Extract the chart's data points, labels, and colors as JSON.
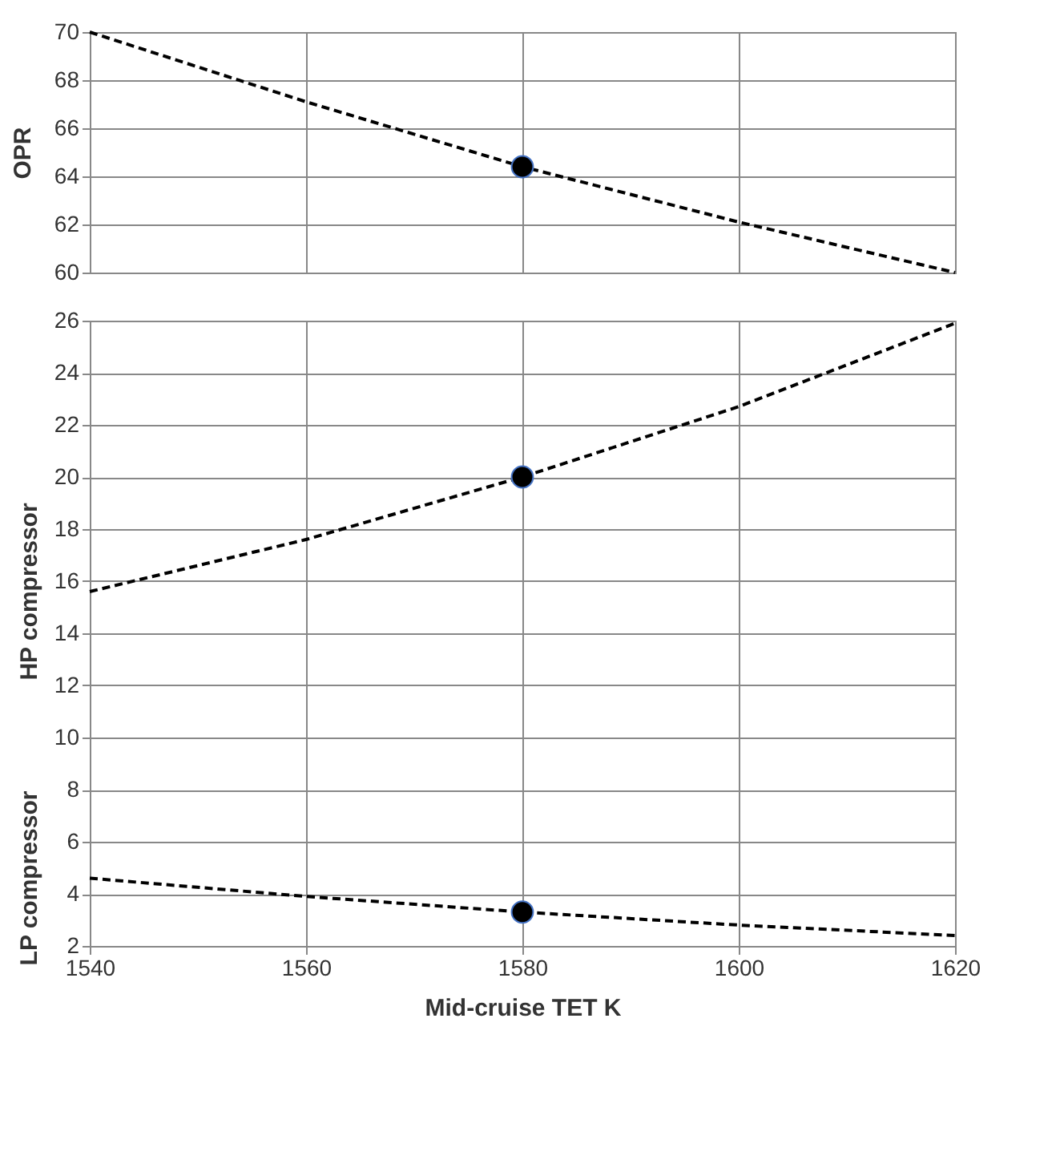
{
  "chart_data": [
    {
      "type": "line",
      "ylabel": "OPR",
      "xlim": [
        1540,
        1620
      ],
      "xticks": [
        1540,
        1560,
        1580,
        1600,
        1620
      ],
      "ylim": [
        60,
        70
      ],
      "yticks": [
        60,
        62,
        64,
        66,
        68,
        70
      ],
      "grid": true,
      "tick_labels": "y",
      "series": [
        {
          "color": "#000000",
          "line_style": "dashed",
          "x": [
            1540,
            1560,
            1580,
            1600,
            1620
          ],
          "values": [
            70,
            67.1,
            64.4,
            62.1,
            60
          ]
        },
        {
          "type": "scatter",
          "color": "#000000",
          "marker": "circle",
          "x": [
            1580
          ],
          "values": [
            64.4
          ]
        }
      ]
    },
    {
      "type": "line",
      "xlabel": "Mid-cruise TET K",
      "xlim": [
        1540,
        1620
      ],
      "xticks": [
        1540,
        1560,
        1580,
        1600,
        1620
      ],
      "ylim": [
        2,
        26
      ],
      "yticks": [
        2,
        4,
        6,
        8,
        10,
        12,
        14,
        16,
        18,
        20,
        22,
        24,
        26
      ],
      "grid": true,
      "series": [
        {
          "name": "HP compressor",
          "color": "#000000",
          "line_style": "dashed",
          "x": [
            1540,
            1560,
            1580,
            1600,
            1620
          ],
          "values": [
            15.6,
            17.6,
            20,
            22.7,
            25.9
          ]
        },
        {
          "type": "scatter",
          "color": "#000000",
          "marker": "circle",
          "x": [
            1580
          ],
          "values": [
            20
          ]
        },
        {
          "name": "LP compressor",
          "color": "#000000",
          "line_style": "dashed",
          "x": [
            1540,
            1560,
            1580,
            1600,
            1620
          ],
          "values": [
            4.6,
            3.9,
            3.3,
            2.8,
            2.4
          ]
        },
        {
          "type": "scatter",
          "color": "#000000",
          "marker": "circle",
          "x": [
            1580
          ],
          "values": [
            3.3
          ]
        }
      ]
    }
  ]
}
